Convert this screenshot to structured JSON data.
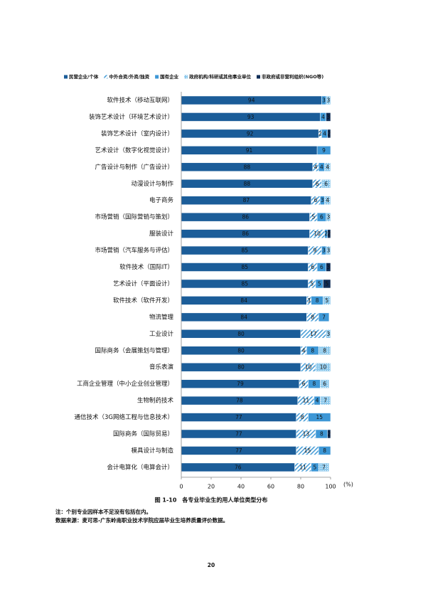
{
  "chart_data": {
    "type": "stacked-barh",
    "title": "图 1-10　各专业毕业生的用人单位类型分布",
    "xlabel": "(%)",
    "xlim": [
      0,
      100
    ],
    "xticks": [
      0,
      20,
      40,
      60,
      80,
      100
    ],
    "legend": "top",
    "categories": [
      "软件技术（移动互联网）",
      "装饰艺术设计（环境艺术设计）",
      "装饰艺术设计（室内设计）",
      "艺术设计（数字化视觉设计）",
      "广告设计与制作（广告设计）",
      "动漫设计与制作",
      "电子商务",
      "市场营销（国际营销与策划）",
      "服装设计",
      "市场营销（汽车服务与评估）",
      "软件技术（国际IT）",
      "艺术设计（平面设计）",
      "软件技术（软件开发）",
      "物流管理",
      "工业设计",
      "国际商务（会展策划与管理）",
      "音乐表演",
      "工商企业管理（中小企业创业管理）",
      "生物制药技术",
      "通信技术（3G网络工程与信息技术）",
      "国际商务（国际贸易）",
      "模具设计与制造",
      "会计电算化（电算会计）"
    ],
    "series": [
      {
        "name": "民营企业/个体",
        "color": "#1b5d99",
        "fill_style": "solid",
        "values": [
          94,
          93,
          92,
          91,
          88,
          88,
          87,
          86,
          86,
          85,
          85,
          85,
          84,
          84,
          80,
          80,
          80,
          79,
          78,
          77,
          77,
          77,
          76
        ]
      },
      {
        "name": "中外合资/外资/独资",
        "color": "#4a9fd8",
        "fill_style": "hatch",
        "values": [
          null,
          null,
          2,
          null,
          4,
          6,
          6,
          5,
          10,
          9,
          6,
          5,
          3,
          8,
          17,
          4,
          10,
          6,
          11,
          8,
          13,
          15,
          11
        ]
      },
      {
        "name": "国有企业",
        "color": "#3d97d6",
        "fill_style": "solid",
        "values": [
          3,
          4,
          4,
          9,
          4,
          null,
          3,
          6,
          2,
          3,
          6,
          5,
          8,
          7,
          null,
          8,
          null,
          8,
          4,
          15,
          8,
          8,
          5
        ]
      },
      {
        "name": "政府机构/科研或其他事业单位",
        "color": "#8cc8ec",
        "fill_style": "dots",
        "values": [
          3,
          null,
          null,
          null,
          4,
          6,
          4,
          3,
          null,
          3,
          null,
          null,
          5,
          null,
          3,
          8,
          10,
          6,
          7,
          null,
          null,
          null,
          7
        ]
      },
      {
        "name": "非政府或非营利组织(NGO等)",
        "color": "#0f2d57",
        "fill_style": "solid",
        "values": [
          null,
          3,
          2,
          null,
          null,
          null,
          null,
          null,
          2,
          null,
          3,
          5,
          null,
          null,
          null,
          null,
          null,
          null,
          null,
          null,
          2,
          null,
          null
        ]
      }
    ]
  },
  "notes": [
    "注：个别专业因样本不足没有包括在内。",
    "数据来源：麦可思-广东岭南职业技术学院应届毕业生培养质量评价数据。"
  ],
  "page_number": "20"
}
